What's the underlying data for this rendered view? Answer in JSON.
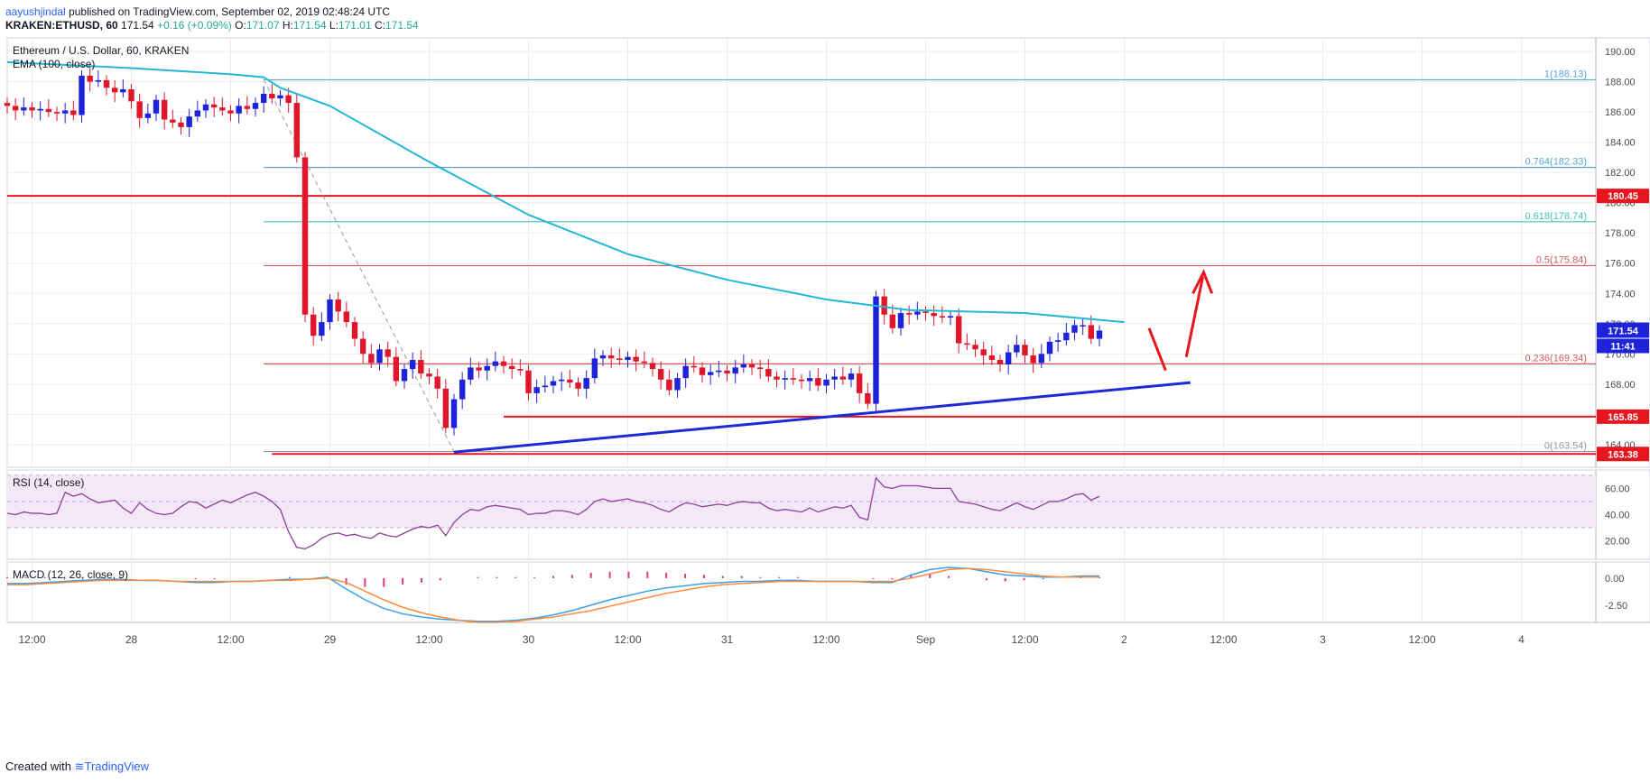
{
  "header": {
    "author": "aayushjindal",
    "published_text": "published on TradingView.com, September 02, 2019 02:48:24 UTC",
    "symbol": "KRAKEN:ETHUSD, 60",
    "last": "171.54",
    "change": "+0.16 (+0.09%)",
    "o_label": "O:",
    "o": "171.07",
    "h_label": "H:",
    "h": "171.54",
    "l_label": "L:",
    "l": "171.01",
    "c_label": "C:",
    "c": "171.54"
  },
  "footer": {
    "created_with": "Created with",
    "brand": "TradingView"
  },
  "colors": {
    "up": "#1e22d8",
    "down": "#e0172b",
    "ema": "#22b7d4",
    "resistance": "#e8141e",
    "trendline": "#1c2bd6",
    "fib_blue": "#5aa7d6",
    "fib_teal": "#43c2b4",
    "fib_red": "#d25c5c",
    "rsi_line": "#8e3e9c",
    "rsi_band": "#f3e8f8",
    "macd_line": "#3aa0e8",
    "signal_line": "#ff8a3c",
    "hist": "#e0368a"
  },
  "chart_data": [
    {
      "type": "candlestick",
      "title": "Ethereum / U.S. Dollar, 60, KRAKEN",
      "indicator_label": "EMA (100, close)",
      "x_tick_labels": [
        "12:00",
        "28",
        "12:00",
        "29",
        "12:00",
        "30",
        "12:00",
        "31",
        "12:00",
        "Sep",
        "12:00",
        "2",
        "12:00",
        "3",
        "12:00",
        "4"
      ],
      "x_tick_hours": [
        12,
        24,
        36,
        48,
        60,
        72,
        84,
        96,
        108,
        120,
        132,
        144,
        156,
        168,
        180,
        192
      ],
      "x_range_hours": [
        9,
        201
      ],
      "y_ticks": [
        "190.00",
        "188.00",
        "186.00",
        "184.00",
        "182.00",
        "180.00",
        "178.00",
        "176.00",
        "174.00",
        "172.00",
        "170.00",
        "168.00",
        "166.00",
        "164.00"
      ],
      "ylim": [
        162.5,
        190.9
      ],
      "grid": true,
      "closes": [
        186.4,
        186.1,
        186.3,
        186.1,
        186.2,
        186.0,
        185.9,
        186.1,
        185.8,
        188.4,
        188.0,
        188.1,
        187.6,
        187.3,
        187.5,
        186.7,
        185.6,
        185.9,
        186.8,
        185.5,
        185.3,
        185.0,
        185.7,
        186.1,
        186.5,
        186.3,
        186.1,
        185.9,
        186.4,
        186.2,
        186.6,
        187.2,
        186.9,
        187.1,
        186.6,
        183.0,
        172.6,
        171.2,
        172.1,
        173.6,
        172.8,
        172.1,
        171.0,
        170.0,
        169.4,
        170.3,
        169.8,
        168.2,
        169.0,
        169.6,
        168.7,
        168.5,
        167.7,
        165.1,
        167.0,
        168.3,
        169.1,
        168.9,
        169.2,
        169.5,
        169.2,
        169.0,
        168.9,
        167.4,
        167.8,
        167.9,
        168.2,
        168.3,
        168.1,
        167.7,
        168.4,
        169.7,
        169.9,
        169.7,
        169.6,
        169.8,
        169.5,
        169.4,
        169.0,
        168.3,
        167.6,
        168.4,
        169.2,
        169.1,
        168.6,
        168.8,
        168.9,
        168.7,
        169.1,
        169.3,
        169.1,
        169.0,
        168.5,
        168.3,
        168.4,
        168.3,
        168.2,
        168.4,
        167.9,
        168.3,
        168.5,
        168.3,
        168.7,
        167.4,
        166.7,
        173.8,
        172.6,
        171.7,
        172.7,
        172.6,
        172.8,
        172.7,
        172.5,
        172.4,
        172.5,
        170.7,
        170.6,
        170.3,
        169.9,
        169.6,
        169.3,
        170.1,
        170.6,
        169.9,
        169.4,
        170.0,
        170.8,
        170.9,
        171.4,
        171.9,
        171.9,
        171.0,
        171.54
      ],
      "ema_100_points": [
        [
          9,
          189.3
        ],
        [
          24,
          188.9
        ],
        [
          36,
          188.5
        ],
        [
          40,
          188.3
        ],
        [
          42,
          187.6
        ],
        [
          48,
          186.4
        ],
        [
          60,
          182.7
        ],
        [
          72,
          179.2
        ],
        [
          84,
          176.6
        ],
        [
          96,
          174.9
        ],
        [
          108,
          173.6
        ],
        [
          118,
          172.9
        ],
        [
          132,
          172.7
        ],
        [
          144,
          172.1
        ]
      ],
      "last_price_label": "171.54",
      "countdown_label": "11:41",
      "fibonacci": {
        "levels": [
          {
            "ratio": "1",
            "price": 188.13,
            "label": "1(188.13)"
          },
          {
            "ratio": "0.764",
            "price": 182.33,
            "label": "0.764(182.33)"
          },
          {
            "ratio": "0.618",
            "price": 178.74,
            "label": "0.618(178.74)"
          },
          {
            "ratio": "0.5",
            "price": 175.84,
            "label": "0.5(175.84)"
          },
          {
            "ratio": "0.236",
            "price": 169.34,
            "label": "0.236(169.34)"
          },
          {
            "ratio": "0",
            "price": 163.54,
            "label": "0(163.54)"
          }
        ]
      },
      "horizontal_lines": [
        {
          "price": 180.45,
          "label": "180.45"
        },
        {
          "price": 165.85,
          "label": "165.85"
        },
        {
          "price": 163.38,
          "label": "163.38"
        }
      ],
      "trendline": {
        "from": [
          63,
          163.5
        ],
        "to": [
          152,
          168.1
        ]
      },
      "annotations": [
        "arrow-down-then-up"
      ]
    },
    {
      "type": "line",
      "title": "RSI (14, close)",
      "y_ticks": [
        "60.00",
        "40.00",
        "20.00"
      ],
      "ylim": [
        6,
        74
      ],
      "band": [
        30,
        70
      ],
      "values": [
        41,
        40,
        42,
        41,
        41,
        40,
        41,
        57,
        54,
        56,
        52,
        49,
        50,
        51,
        45,
        41,
        49,
        44,
        41,
        40,
        41,
        46,
        50,
        49,
        45,
        48,
        51,
        49,
        52,
        55,
        57,
        54,
        50,
        44,
        27,
        15,
        14,
        17,
        22,
        25,
        26,
        24,
        25,
        23,
        22,
        26,
        24,
        23,
        26,
        29,
        31,
        30,
        32,
        24,
        34,
        40,
        44,
        43,
        46,
        47,
        46,
        45,
        44,
        40,
        41,
        41,
        43,
        43,
        42,
        40,
        44,
        50,
        52,
        50,
        51,
        52,
        50,
        49,
        47,
        44,
        42,
        46,
        49,
        48,
        46,
        47,
        48,
        47,
        49,
        50,
        49,
        49,
        45,
        43,
        44,
        43,
        42,
        45,
        42,
        44,
        46,
        45,
        47,
        38,
        36,
        68,
        61,
        60,
        62,
        62,
        62,
        61,
        60,
        60,
        60,
        50,
        49,
        48,
        46,
        44,
        43,
        46,
        49,
        46,
        44,
        47,
        50,
        50,
        52,
        55,
        56,
        51,
        54
      ]
    },
    {
      "type": "line",
      "title": "MACD (12, 26, close, 9)",
      "y_ticks": [
        "0.00",
        "-2.50"
      ],
      "ylim": [
        -4.1,
        1.5
      ],
      "series": [
        {
          "name": "MACD",
          "values": [
            -0.5,
            -0.5,
            -0.4,
            -0.3,
            -0.2,
            -0.1,
            -0.1,
            -0.2,
            -0.2,
            -0.3,
            -0.4,
            -0.4,
            -0.3,
            -0.3,
            -0.2,
            -0.1,
            -0.1,
            0.1,
            -1.0,
            -2.0,
            -2.8,
            -3.3,
            -3.6,
            -3.8,
            -3.9,
            -4.0,
            -4.0,
            -3.9,
            -3.7,
            -3.4,
            -3.0,
            -2.5,
            -2.0,
            -1.6,
            -1.2,
            -0.9,
            -0.7,
            -0.5,
            -0.4,
            -0.3,
            -0.3,
            -0.2,
            -0.2,
            -0.3,
            -0.3,
            -0.3,
            -0.4,
            -0.4,
            0.3,
            0.8,
            1.0,
            0.9,
            0.6,
            0.3,
            0.2,
            0.1,
            0.1,
            0.2,
            0.2
          ]
        },
        {
          "name": "Signal",
          "values": [
            -0.6,
            -0.6,
            -0.5,
            -0.4,
            -0.3,
            -0.2,
            -0.2,
            -0.2,
            -0.2,
            -0.3,
            -0.3,
            -0.3,
            -0.3,
            -0.3,
            -0.2,
            -0.2,
            -0.1,
            0.0,
            -0.4,
            -1.2,
            -2.0,
            -2.7,
            -3.2,
            -3.6,
            -3.9,
            -4.1,
            -4.1,
            -4.0,
            -3.8,
            -3.6,
            -3.3,
            -3.0,
            -2.6,
            -2.2,
            -1.8,
            -1.4,
            -1.1,
            -0.8,
            -0.6,
            -0.5,
            -0.4,
            -0.3,
            -0.3,
            -0.3,
            -0.3,
            -0.3,
            -0.3,
            -0.3,
            0.0,
            0.4,
            0.8,
            0.9,
            0.8,
            0.6,
            0.4,
            0.2,
            0.1,
            0.1,
            0.1
          ]
        }
      ],
      "histogram": [
        0.1,
        0.1,
        0.1,
        0.1,
        0.1,
        0.1,
        0.1,
        0.0,
        0.0,
        0.0,
        -0.1,
        -0.1,
        0.0,
        0.0,
        0.0,
        0.1,
        0.0,
        0.1,
        -0.6,
        -0.8,
        -0.8,
        -0.6,
        -0.4,
        -0.2,
        0.0,
        0.1,
        0.1,
        0.1,
        0.1,
        0.2,
        0.3,
        0.5,
        0.6,
        0.6,
        0.6,
        0.5,
        0.4,
        0.3,
        0.2,
        0.2,
        0.1,
        0.1,
        0.1,
        0.0,
        0.0,
        0.0,
        -0.1,
        -0.1,
        0.3,
        0.4,
        0.2,
        0.0,
        -0.2,
        -0.3,
        -0.2,
        -0.1,
        0.0,
        0.1,
        0.1
      ]
    }
  ]
}
